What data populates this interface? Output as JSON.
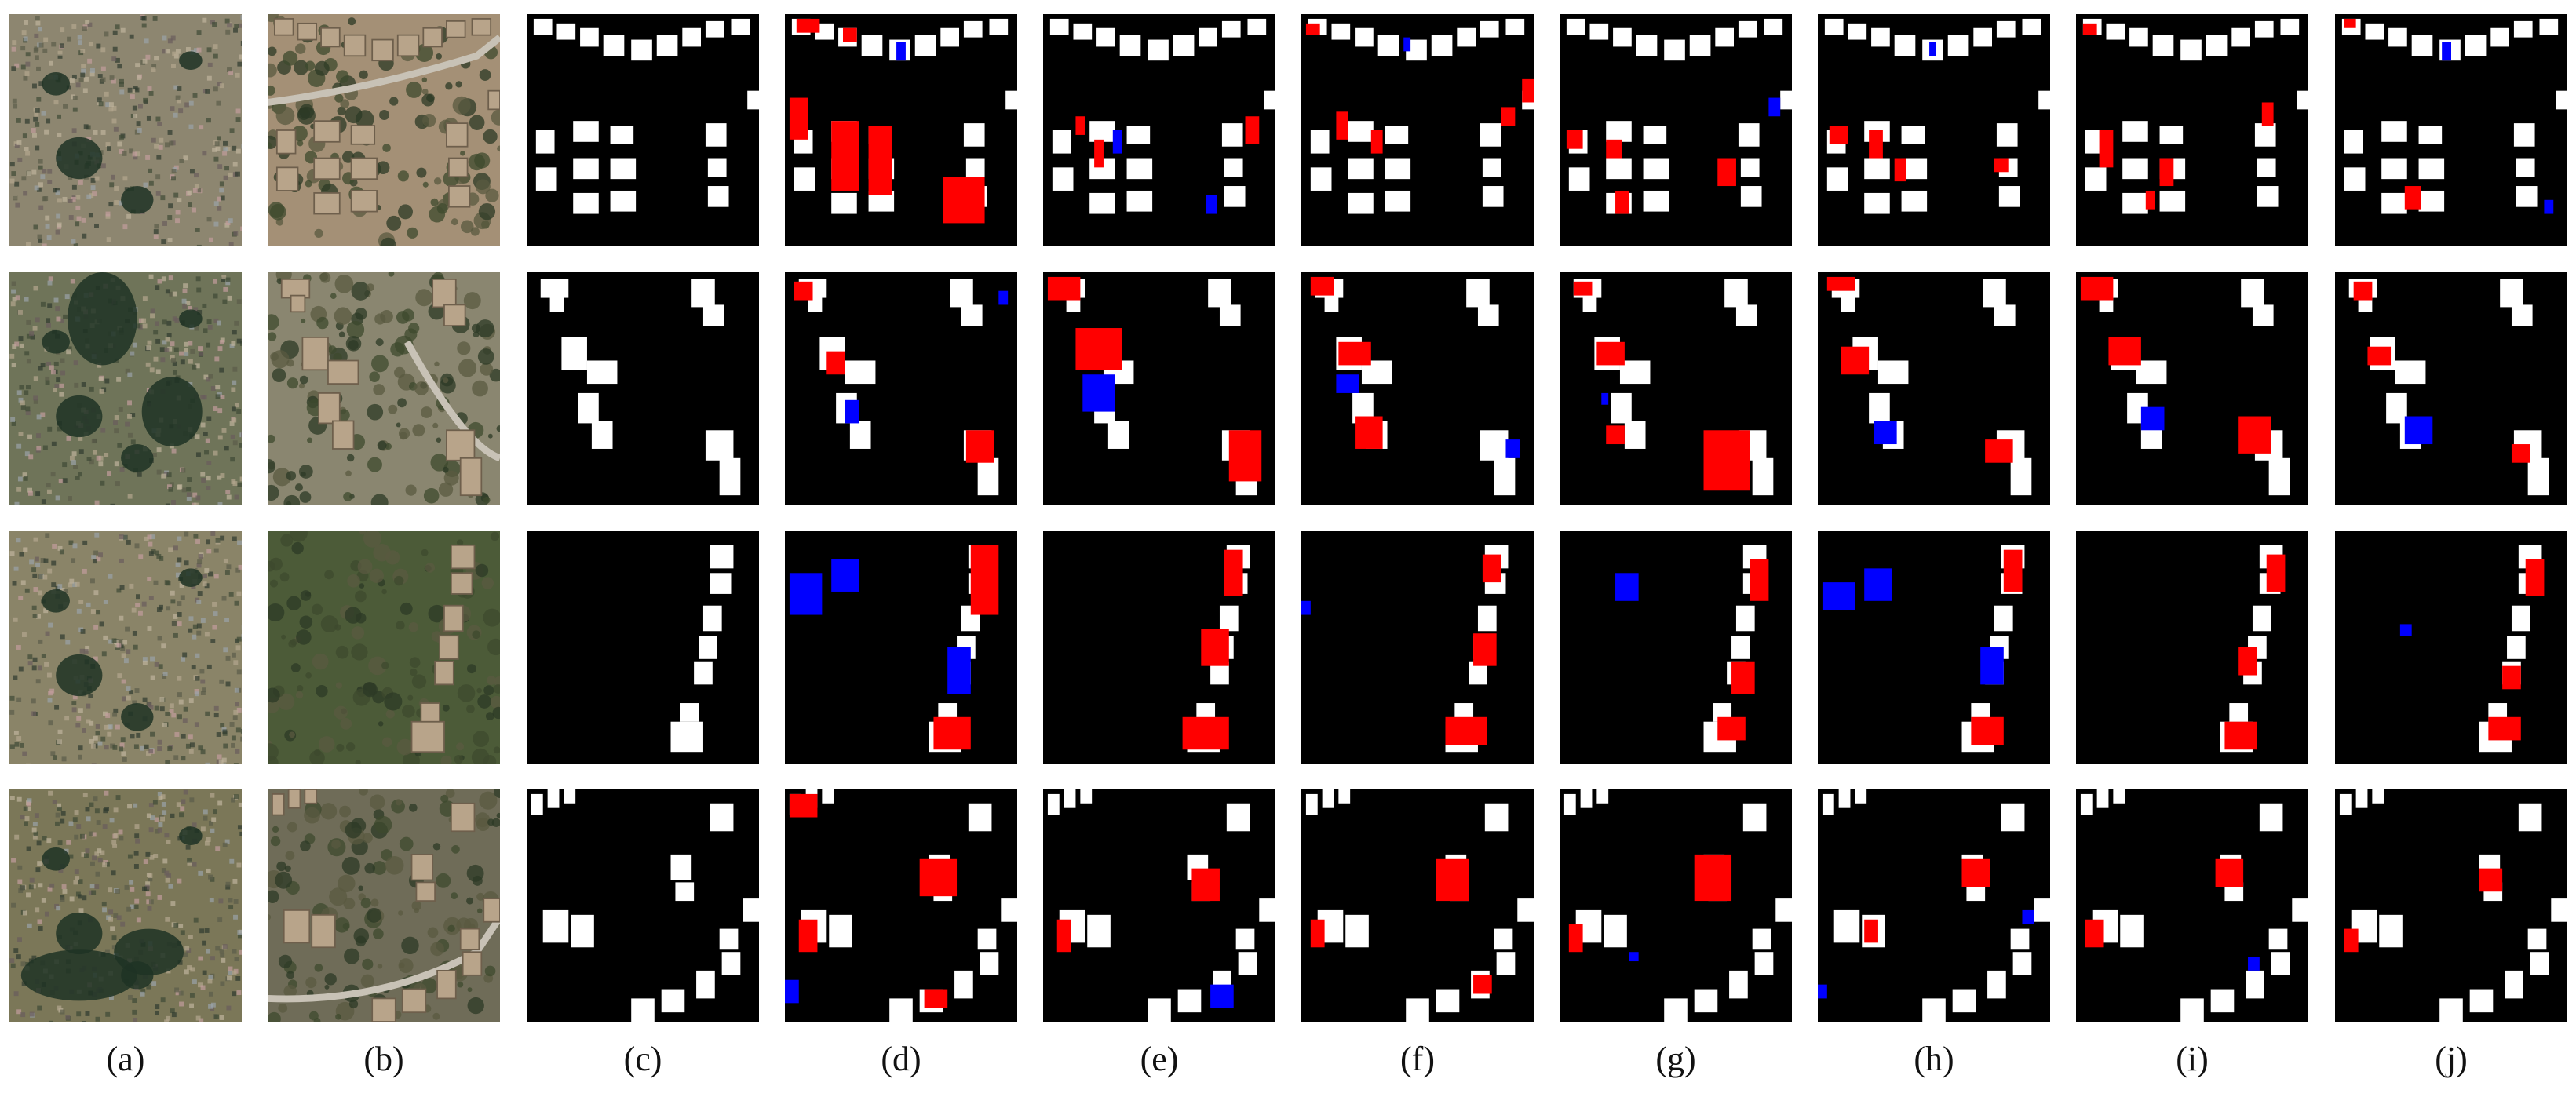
{
  "figure": {
    "column_labels": [
      "(a)",
      "(b)",
      "(c)",
      "(d)",
      "(e)",
      "(f)",
      "(g)",
      "(h)",
      "(i)",
      "(j)"
    ],
    "colors": {
      "building": "#ffffff",
      "background": "#000000",
      "false_positive": "#ff0000",
      "false_negative": "#0000ff"
    },
    "columns": [
      {
        "label": "(a)",
        "kind": "noisy-satellite-image"
      },
      {
        "label": "(b)",
        "kind": "clean-satellite-image"
      },
      {
        "label": "(c)",
        "kind": "ground-truth-mask"
      },
      {
        "label": "(d)",
        "kind": "prediction-error-map"
      },
      {
        "label": "(e)",
        "kind": "prediction-error-map"
      },
      {
        "label": "(f)",
        "kind": "prediction-error-map"
      },
      {
        "label": "(g)",
        "kind": "prediction-error-map"
      },
      {
        "label": "(h)",
        "kind": "prediction-error-map"
      },
      {
        "label": "(i)",
        "kind": "prediction-error-map"
      },
      {
        "label": "(j)",
        "kind": "prediction-error-map"
      }
    ],
    "rows": 4
  }
}
